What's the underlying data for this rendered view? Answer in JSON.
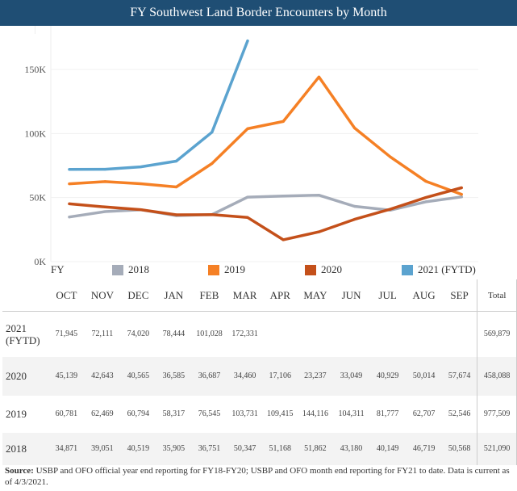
{
  "title": "FY Southwest Land Border Encounters by Month",
  "chart_data": {
    "type": "line",
    "title": "FY Southwest Land Border Encounters by Month",
    "xlabel": "",
    "ylabel": "",
    "categories": [
      "OCT",
      "NOV",
      "DEC",
      "JAN",
      "FEB",
      "MAR",
      "APR",
      "MAY",
      "JUN",
      "JUL",
      "AUG",
      "SEP"
    ],
    "ylim": [
      0,
      175000
    ],
    "yticks": [
      0,
      50000,
      100000,
      150000
    ],
    "ytick_labels": [
      "0K",
      "50K",
      "100K",
      "150K"
    ],
    "grid": true,
    "legend_title": "FY",
    "legend_position": "bottom",
    "series": [
      {
        "name": "2018",
        "color": "#a5acb9",
        "values": [
          34871,
          39051,
          40519,
          35905,
          36751,
          50347,
          51168,
          51862,
          43180,
          40149,
          46719,
          50568
        ]
      },
      {
        "name": "2019",
        "color": "#f58025",
        "values": [
          60781,
          62469,
          60794,
          58317,
          76545,
          103731,
          109415,
          144116,
          104311,
          81777,
          62707,
          52546
        ]
      },
      {
        "name": "2020",
        "color": "#c4501a",
        "values": [
          45139,
          42643,
          40565,
          36585,
          36687,
          34460,
          17106,
          23237,
          33049,
          40929,
          50014,
          57674
        ]
      },
      {
        "name": "2021 (FYTD)",
        "color": "#5ba3cf",
        "values": [
          71945,
          72111,
          74020,
          78444,
          101028,
          172331
        ]
      }
    ]
  },
  "legend": {
    "title": "FY",
    "items": [
      {
        "label": "2018",
        "color": "#a5acb9"
      },
      {
        "label": "2019",
        "color": "#f58025"
      },
      {
        "label": "2020",
        "color": "#c4501a"
      },
      {
        "label": "2021 (FYTD)",
        "color": "#5ba3cf"
      }
    ]
  },
  "table": {
    "headers": [
      "",
      "OCT",
      "NOV",
      "DEC",
      "JAN",
      "FEB",
      "MAR",
      "APR",
      "MAY",
      "JUN",
      "JUL",
      "AUG",
      "SEP",
      "Total"
    ],
    "rows": [
      {
        "year_line1": "2021",
        "year_line2": "(FYTD)",
        "cells": [
          "71,945",
          "72,111",
          "74,020",
          "78,444",
          "101,028",
          "172,331",
          "",
          "",
          "",
          "",
          "",
          ""
        ],
        "total": "569,879"
      },
      {
        "year_line1": "2020",
        "year_line2": "",
        "cells": [
          "45,139",
          "42,643",
          "40,565",
          "36,585",
          "36,687",
          "34,460",
          "17,106",
          "23,237",
          "33,049",
          "40,929",
          "50,014",
          "57,674"
        ],
        "total": "458,088"
      },
      {
        "year_line1": "2019",
        "year_line2": "",
        "cells": [
          "60,781",
          "62,469",
          "60,794",
          "58,317",
          "76,545",
          "103,731",
          "109,415",
          "144,116",
          "104,311",
          "81,777",
          "62,707",
          "52,546"
        ],
        "total": "977,509"
      },
      {
        "year_line1": "2018",
        "year_line2": "",
        "cells": [
          "34,871",
          "39,051",
          "40,519",
          "35,905",
          "36,751",
          "50,347",
          "51,168",
          "51,862",
          "43,180",
          "40,149",
          "46,719",
          "50,568"
        ],
        "total": "521,090"
      }
    ]
  },
  "source": {
    "label": "Source:",
    "text": " USBP and OFO official year end reporting for FY18-FY20; USBP and OFO month end reporting for FY21 to date. Data is current as of 4/3/2021."
  }
}
